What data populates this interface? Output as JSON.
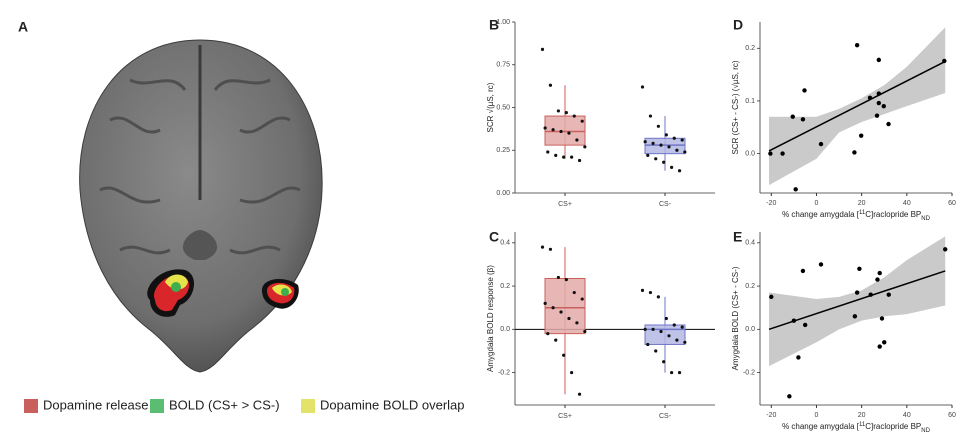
{
  "brain_panel": {
    "panel": "A",
    "legend": [
      {
        "name": "Dopamine release",
        "color": "#c9605c"
      },
      {
        "name": "BOLD (CS+ > CS-)",
        "color": "#5bbd72"
      },
      {
        "name": "Dopamine BOLD overlap",
        "color": "#e3e36a"
      }
    ]
  },
  "chart_data": [
    {
      "type": "box",
      "panel": "B",
      "ylabel": "SCR √(µS, rc)",
      "categories": [
        "CS+",
        "CS-"
      ],
      "colors": [
        "#c9605c",
        "#6f76c6"
      ],
      "fills": [
        "#e3aaa9",
        "#b5b8e4"
      ],
      "ylim": [
        0,
        1
      ],
      "yticks": [
        {
          "value": 0,
          "label": "0.00"
        },
        {
          "value": 0.25,
          "label": "0.25"
        },
        {
          "value": 0.5,
          "label": "0.50"
        },
        {
          "value": 0.75,
          "label": "0.75"
        },
        {
          "value": 1,
          "label": "1.00"
        }
      ],
      "boxes": [
        {
          "q1": 0.28,
          "median": 0.36,
          "q3": 0.45,
          "whisker_low": 0.2,
          "whisker_high": 0.63
        },
        {
          "q1": 0.23,
          "median": 0.28,
          "q3": 0.32,
          "whisker_low": 0.13,
          "whisker_high": 0.45
        }
      ],
      "points": [
        [
          0.84,
          0.63,
          0.48,
          0.47,
          0.45,
          0.42,
          0.38,
          0.37,
          0.36,
          0.35,
          0.31,
          0.27,
          0.24,
          0.22,
          0.21,
          0.21,
          0.19
        ],
        [
          0.62,
          0.45,
          0.39,
          0.34,
          0.32,
          0.31,
          0.3,
          0.29,
          0.28,
          0.27,
          0.25,
          0.24,
          0.22,
          0.2,
          0.18,
          0.15,
          0.13
        ]
      ]
    },
    {
      "type": "box",
      "panel": "C",
      "ylabel": "Amygdala BOLD response (β)",
      "categories": [
        "CS+",
        "CS-"
      ],
      "colors": [
        "#c9605c",
        "#6f76c6"
      ],
      "fills": [
        "#e3aaa9",
        "#b5b8e4"
      ],
      "ylim": [
        -0.35,
        0.45
      ],
      "yticks": [
        -0.2,
        {
          "value": 0,
          "label": "0.0"
        },
        0.2,
        0.4
      ],
      "hline": 0,
      "boxes": [
        {
          "q1": -0.02,
          "median": 0.1,
          "q3": 0.235,
          "whisker_low": -0.3,
          "whisker_high": 0.38
        },
        {
          "q1": -0.07,
          "median": 0,
          "q3": 0.02,
          "whisker_low": -0.2,
          "whisker_high": 0.15
        }
      ],
      "points": [
        [
          0.38,
          0.37,
          0.24,
          0.23,
          0.17,
          0.14,
          0.12,
          0.1,
          0.08,
          0.05,
          0.03,
          -0.01,
          -0.02,
          -0.05,
          -0.12,
          -0.2,
          -0.3
        ],
        [
          0.18,
          0.17,
          0.15,
          0.05,
          0.02,
          0.01,
          0.0,
          0.0,
          -0.01,
          -0.03,
          -0.05,
          -0.06,
          -0.07,
          -0.1,
          -0.15,
          -0.2,
          -0.2
        ]
      ]
    },
    {
      "type": "scatter",
      "panel": "D",
      "ylabel": "SCR (CS+ - CS-) (√µS, rc)",
      "xlabel": [
        "% change amygdala [",
        "11",
        "C]raclopride BP",
        "ND"
      ],
      "xlim": [
        -25,
        60
      ],
      "xticks": [
        -20,
        0,
        20,
        40,
        60
      ],
      "ylim": [
        -0.075,
        0.25
      ],
      "yticks": [
        {
          "value": 0,
          "label": "0.0"
        },
        0.1,
        0.2
      ],
      "x": [
        -20.4,
        -15,
        -10.5,
        -5.3,
        -6,
        -9.2,
        2,
        16.8,
        18,
        19.8,
        23.7,
        27.6,
        27.6,
        27.6,
        26.8,
        29.8,
        31.9,
        56.6
      ],
      "y": [
        0.0,
        0.0,
        0.07,
        0.12,
        0.065,
        -0.068,
        0.018,
        0.002,
        0.206,
        0.034,
        0.106,
        0.114,
        0.178,
        0.096,
        0.072,
        0.09,
        0.056,
        0.176
      ],
      "fit": {
        "x": [
          -21,
          57
        ],
        "y": [
          0.005,
          0.175
        ]
      },
      "band": {
        "x": [
          -21,
          0,
          10,
          20,
          30,
          40,
          57
        ],
        "lower": [
          -0.06,
          -0.01,
          0.04,
          0.06,
          0.075,
          0.09,
          0.115
        ],
        "upper": [
          0.07,
          0.07,
          0.085,
          0.105,
          0.13,
          0.165,
          0.24
        ]
      }
    },
    {
      "type": "scatter",
      "panel": "E",
      "ylabel": "Amygdala BOLD (CS+ - CS-)",
      "xlabel": [
        "% change amygdala [",
        "11",
        "C]raclopride BP",
        "ND"
      ],
      "xlim": [
        -25,
        60
      ],
      "xticks": [
        -20,
        0,
        20,
        40,
        60
      ],
      "ylim": [
        -0.35,
        0.45
      ],
      "yticks": [
        -0.2,
        {
          "value": 0,
          "label": "0.0"
        },
        0.2,
        0.4
      ],
      "x": [
        -20,
        -10,
        -8,
        -6,
        -5,
        -12,
        2,
        17,
        18,
        19,
        24,
        27,
        28,
        28,
        29,
        30,
        32,
        57
      ],
      "y": [
        0.15,
        0.04,
        -0.13,
        0.27,
        0.02,
        -0.31,
        0.3,
        0.06,
        0.17,
        0.28,
        0.16,
        0.23,
        0.26,
        -0.08,
        0.05,
        -0.06,
        0.16,
        0.37
      ],
      "fit": {
        "x": [
          -21,
          57
        ],
        "y": [
          0.0,
          0.27
        ]
      },
      "band": {
        "x": [
          -21,
          0,
          10,
          20,
          30,
          40,
          57
        ],
        "lower": [
          -0.17,
          -0.06,
          0.0,
          0.04,
          0.06,
          0.07,
          0.11
        ],
        "upper": [
          0.17,
          0.14,
          0.15,
          0.18,
          0.24,
          0.32,
          0.43
        ]
      }
    }
  ]
}
